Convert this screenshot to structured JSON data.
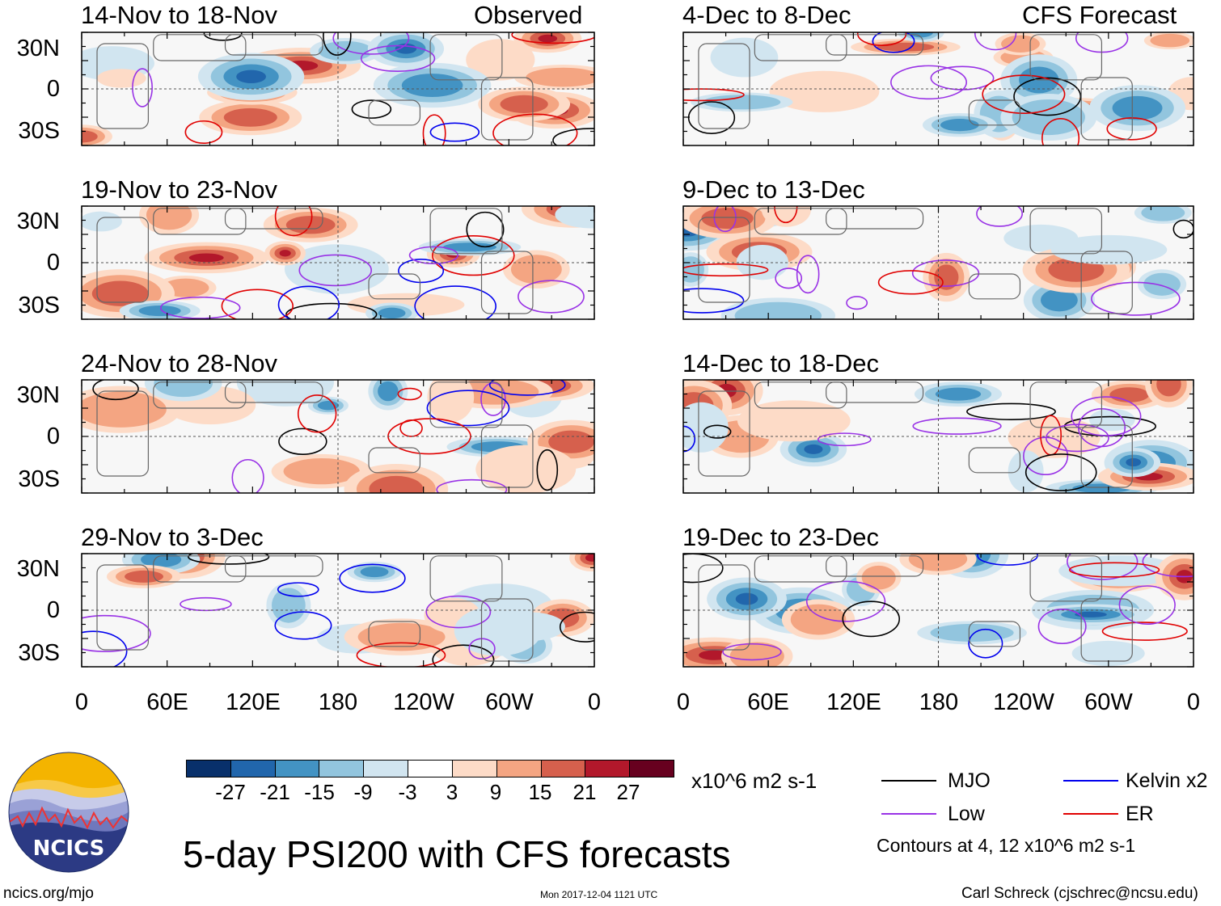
{
  "title": "5-day PSI200 with CFS forecasts",
  "left_column_label": "Observed",
  "right_column_label": "CFS Forecast",
  "panels_left": [
    {
      "period": "14-Nov to 18-Nov"
    },
    {
      "period": "19-Nov to 23-Nov"
    },
    {
      "period": "24-Nov to 28-Nov"
    },
    {
      "period": "29-Nov to 3-Dec"
    }
  ],
  "panels_right": [
    {
      "period": "4-Dec to 8-Dec"
    },
    {
      "period": "9-Dec to 13-Dec"
    },
    {
      "period": "14-Dec to 18-Dec"
    },
    {
      "period": "19-Dec to 23-Dec"
    }
  ],
  "lat_labels": [
    "30N",
    "0",
    "30S"
  ],
  "lon_labels": [
    "0",
    "60E",
    "120E",
    "180",
    "120W",
    "60W",
    "0"
  ],
  "colorbar": {
    "ticks": [
      "-27",
      "-21",
      "-15",
      "-9",
      "-3",
      "3",
      "9",
      "15",
      "21",
      "27"
    ],
    "colors": [
      "#08306b",
      "#2166ac",
      "#4393c3",
      "#92c5de",
      "#d1e5f0",
      "#ffffff",
      "#fddbc7",
      "#f4a582",
      "#d6604d",
      "#b2182b",
      "#67001f"
    ],
    "units": "x10^6 m2 s-1"
  },
  "legend": {
    "items": [
      {
        "label": "MJO",
        "color": "#000000"
      },
      {
        "label": "Kelvin x2",
        "color": "#0000ee"
      },
      {
        "label": "Low",
        "color": "#9932e6"
      },
      {
        "label": "ER",
        "color": "#e00000"
      }
    ],
    "note": "Contours at 4, 12 x10^6 m2 s-1"
  },
  "logo_text": "NCICS",
  "footer": {
    "url": "ncics.org/mjo",
    "timestamp": "Mon 2017-12-04 1121 UTC",
    "credit": "Carl Schreck (cjschrec@ncsu.edu)"
  }
}
